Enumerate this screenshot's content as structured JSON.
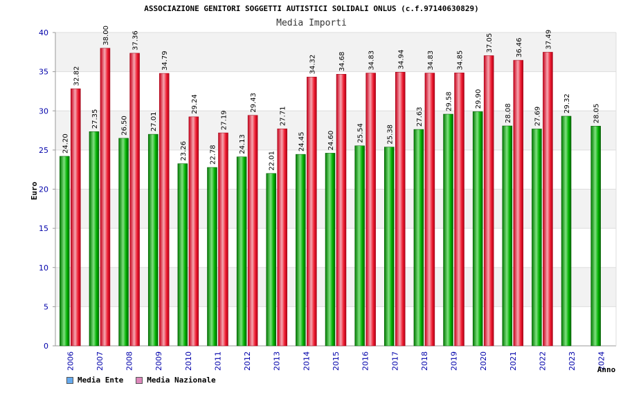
{
  "chart_data": {
    "type": "bar",
    "title": "ASSOCIAZIONE GENITORI SOGGETTI AUTISTICI SOLIDALI ONLUS (c.f.97140630829)",
    "subtitle": "Media Importi",
    "xlabel": "Anno",
    "ylabel": "Euro",
    "ylim": [
      0,
      40
    ],
    "yticks": [
      0,
      5,
      10,
      15,
      20,
      25,
      30,
      35,
      40
    ],
    "categories": [
      "2006",
      "2007",
      "2008",
      "2009",
      "2010",
      "2011",
      "2012",
      "2013",
      "2014",
      "2015",
      "2016",
      "2017",
      "2018",
      "2019",
      "2020",
      "2021",
      "2022",
      "2023",
      "2024"
    ],
    "series": [
      {
        "name": "Media Ente",
        "color": "#00aa00",
        "values": [
          24.2,
          27.35,
          26.5,
          27.01,
          23.26,
          22.78,
          24.13,
          22.01,
          24.45,
          24.6,
          25.54,
          25.38,
          27.63,
          29.58,
          29.9,
          28.08,
          27.69,
          29.32,
          28.05
        ],
        "labels": [
          "24.20",
          "27.35",
          "26.50",
          "27.01",
          "23.26",
          "22.78",
          "24.13",
          "22.01",
          "24.45",
          "24.60",
          "25.54",
          "25.38",
          "27.63",
          "29.58",
          "29.90",
          "28.08",
          "27.69",
          "29.32",
          "28.05"
        ]
      },
      {
        "name": "Media Nazionale",
        "color": "#e8142a",
        "values": [
          32.82,
          38.0,
          37.36,
          34.79,
          29.24,
          27.19,
          29.43,
          27.71,
          34.32,
          34.68,
          34.83,
          34.94,
          34.83,
          34.85,
          37.05,
          36.46,
          37.49,
          null,
          null
        ],
        "labels": [
          "32.82",
          "38.00",
          "37.36",
          "34.79",
          "29.24",
          "27.19",
          "29.43",
          "27.71",
          "34.32",
          "34.68",
          "34.83",
          "34.94",
          "34.83",
          "34.85",
          "37.05",
          "36.46",
          "37.49",
          null,
          null
        ]
      }
    ],
    "legend": [
      {
        "name": "Media Ente",
        "color": "#66aaee"
      },
      {
        "name": "Media Nazionale",
        "color": "#dd88bb"
      }
    ],
    "legend_position": "bottom-left",
    "grid": true
  }
}
